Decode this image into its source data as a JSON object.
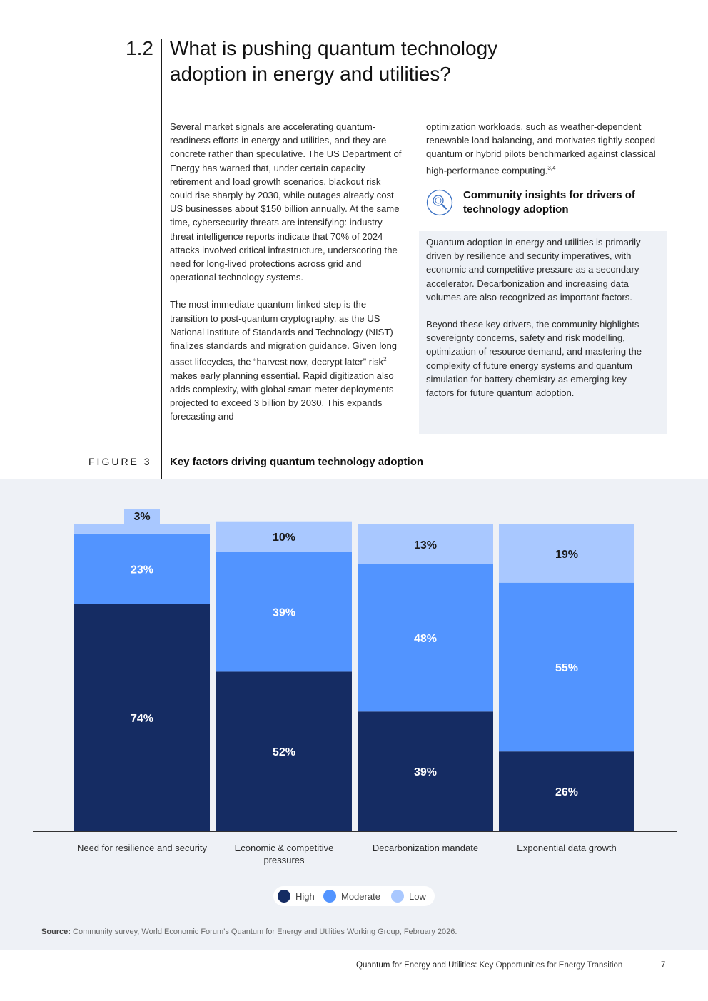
{
  "section": {
    "number": "1.2",
    "title": "What is pushing quantum technology adoption in energy and utilities?"
  },
  "body": {
    "p1": "Several market signals are accelerating quantum-readiness efforts in energy and utilities, and they are concrete rather than speculative. The US Department of Energy has warned that, under certain capacity retirement and load growth scenarios, blackout risk could rise sharply by 2030, while outages already cost US businesses about $150 billion annually. At the same time, cybersecurity threats are intensifying: industry threat intelligence reports indicate that 70% of 2024 attacks involved critical infrastructure, underscoring the need for long-lived protections across grid and operational technology systems.",
    "p2_a": "The most immediate quantum-linked step is the transition to post-quantum cryptography, as the US National Institute of Standards and Technology (NIST) finalizes standards and migration guidance. Given long asset lifecycles, the “harvest now, decrypt later” risk",
    "p2_sup": "2",
    "p2_b": " makes early planning essential. Rapid digitization also adds complexity, with global smart meter deployments projected to exceed 3 billion by 2030. This expands forecasting and",
    "p3": "optimization workloads, such as weather-dependent renewable load balancing, and motivates tightly scoped quantum or hybrid pilots benchmarked against classical high-performance computing.",
    "p3_sup": "3,4"
  },
  "insight": {
    "title": "Community insights for drivers of technology adoption",
    "icon": "magnifier-icon",
    "p1": "Quantum adoption in energy and utilities is primarily driven by resilience and security imperatives, with economic and competitive pressure as a secondary accelerator. Decarbonization and increasing data volumes are also recognized as important factors.",
    "p2": "Beyond these key drivers, the community highlights sovereignty concerns, safety and risk modelling, optimization of resource demand, and mastering the complexity of future energy systems and quantum simulation for battery chemistry as emerging key factors for future quantum adoption."
  },
  "figure": {
    "label": "FIGURE 3",
    "title": "Key factors driving quantum technology adoption"
  },
  "chart_data": {
    "type": "bar",
    "stacked": true,
    "categories": [
      "Need for resilience and security",
      "Economic & competitive pressures",
      "Decarbonization mandate",
      "Exponential data growth"
    ],
    "series": [
      {
        "name": "High",
        "color": "#152c63",
        "values": [
          74,
          52,
          39,
          26
        ]
      },
      {
        "name": "Moderate",
        "color": "#5294ff",
        "values": [
          23,
          39,
          48,
          55
        ]
      },
      {
        "name": "Low",
        "color": "#a9c8ff",
        "values": [
          3,
          10,
          13,
          19
        ]
      }
    ],
    "value_suffix": "%",
    "legend_position": "bottom-center",
    "grid": false
  },
  "source": {
    "label": "Source:",
    "text": "Community survey, World Economic Forum’s Quantum for Energy and Utilities Working Group, February 2026."
  },
  "footer": {
    "title_bold": "Quantum for Energy and Utilities:",
    "title_rest": " Key Opportunities for Energy Transition",
    "page": "7"
  }
}
